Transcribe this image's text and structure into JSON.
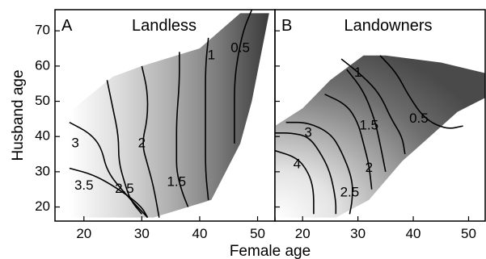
{
  "chart_data": [
    {
      "type": "contour",
      "panel_letter": "A",
      "title": "Landless",
      "xlabel": "Female age",
      "ylabel": "Husband age",
      "xlim": [
        15,
        53
      ],
      "ylim": [
        16,
        76
      ],
      "x_ticks": [
        "20",
        "30",
        "40",
        "50"
      ],
      "y_ticks": [
        "20",
        "30",
        "40",
        "50",
        "60",
        "70"
      ],
      "fill_scale": "grey, light = high, dark = low",
      "domain_corners": [
        [
          17.5,
          17
        ],
        [
          32,
          17
        ],
        [
          42,
          22
        ],
        [
          47,
          38
        ],
        [
          49,
          50
        ],
        [
          52,
          75
        ],
        [
          47,
          75
        ],
        [
          40,
          65
        ],
        [
          30,
          60
        ],
        [
          25,
          57
        ],
        [
          17.5,
          47
        ]
      ],
      "contour_labels": [
        "0.5",
        "1",
        "1.5",
        "2",
        "2.5",
        "3",
        "3.5"
      ],
      "contours": [
        {
          "level": "3.5",
          "label_at": [
            20,
            26
          ],
          "points": [
            [
              17.5,
              31
            ],
            [
              22,
              29
            ],
            [
              27,
              24
            ],
            [
              30,
              20
            ],
            [
              31,
              17
            ]
          ]
        },
        {
          "level": "3",
          "label_at": [
            18.5,
            38
          ],
          "points": [
            [
              17.5,
              44
            ],
            [
              21,
              41
            ],
            [
              23,
              37
            ],
            [
              24,
              30
            ],
            [
              27,
              24
            ],
            [
              31,
              17
            ]
          ]
        },
        {
          "level": "2.5",
          "label_at": [
            27,
            25
          ],
          "points": [
            [
              24,
              56
            ],
            [
              25,
              48
            ],
            [
              26,
              40
            ],
            [
              26,
              33
            ],
            [
              27,
              27
            ],
            [
              28,
              22
            ],
            [
              30,
              18
            ]
          ]
        },
        {
          "level": "2",
          "label_at": [
            30,
            38
          ],
          "points": [
            [
              30,
              60
            ],
            [
              31,
              53
            ],
            [
              31,
              45
            ],
            [
              30,
              38
            ],
            [
              31,
              32
            ],
            [
              32,
              26
            ],
            [
              33,
              17
            ]
          ]
        },
        {
          "level": "1.5",
          "label_at": [
            36,
            27
          ],
          "points": [
            [
              36.5,
              64
            ],
            [
              36.5,
              55
            ],
            [
              36,
              45
            ],
            [
              36,
              36
            ],
            [
              36,
              30
            ],
            [
              37,
              24
            ],
            [
              38,
              20
            ]
          ]
        },
        {
          "level": "1",
          "label_at": [
            42,
            63
          ],
          "points": [
            [
              41.5,
              68
            ],
            [
              41,
              60
            ],
            [
              41,
              50
            ],
            [
              41,
              40
            ],
            [
              41,
              30
            ],
            [
              41.5,
              22
            ]
          ]
        },
        {
          "level": "0.5",
          "label_at": [
            47,
            65
          ],
          "points": [
            [
              49,
              76
            ],
            [
              47.5,
              70
            ],
            [
              46.5,
              62
            ],
            [
              46,
              55
            ],
            [
              46,
              45
            ],
            [
              46,
              38
            ]
          ]
        }
      ]
    },
    {
      "type": "contour",
      "panel_letter": "B",
      "title": "Landowners",
      "xlabel": "Female age",
      "ylabel": "Husband age",
      "xlim": [
        15,
        53
      ],
      "ylim": [
        16,
        76
      ],
      "x_ticks": [
        "20",
        "30",
        "40",
        "50"
      ],
      "y_ticks": [
        "20",
        "30",
        "40",
        "50",
        "60",
        "70"
      ],
      "fill_scale": "grey, light = high, dark = low",
      "domain_corners": [
        [
          15,
          17
        ],
        [
          26,
          17
        ],
        [
          32,
          22
        ],
        [
          38,
          33
        ],
        [
          43,
          40
        ],
        [
          48,
          47
        ],
        [
          53,
          51
        ],
        [
          53,
          58
        ],
        [
          45,
          61
        ],
        [
          35,
          63
        ],
        [
          31,
          63
        ],
        [
          25,
          56
        ],
        [
          20,
          48
        ],
        [
          15,
          43
        ]
      ],
      "contour_labels": [
        "0.5",
        "1",
        "1.5",
        "2",
        "2.5",
        "3",
        "4"
      ],
      "contours": [
        {
          "level": "4",
          "label_at": [
            19,
            32
          ],
          "points": [
            [
              15,
              36
            ],
            [
              19,
              34
            ],
            [
              21,
              30
            ],
            [
              22,
              25
            ],
            [
              22,
              18
            ]
          ]
        },
        {
          "level": "3",
          "label_at": [
            21,
            41
          ],
          "points": [
            [
              15,
              41
            ],
            [
              18,
              41
            ],
            [
              21,
              40
            ],
            [
              23,
              36
            ],
            [
              25,
              30
            ],
            [
              26,
              22
            ],
            [
              26,
              18
            ]
          ]
        },
        {
          "level": "2.5",
          "label_at": [
            28.5,
            24
          ],
          "points": [
            [
              17,
              44
            ],
            [
              21,
              44
            ],
            [
              25,
              41
            ],
            [
              27,
              36
            ],
            [
              29,
              28
            ],
            [
              29,
              22
            ],
            [
              28.5,
              18
            ]
          ]
        },
        {
          "level": "2",
          "label_at": [
            32,
            31
          ],
          "points": [
            [
              24,
              52
            ],
            [
              28,
              49
            ],
            [
              30,
              44
            ],
            [
              31,
              38
            ],
            [
              32,
              32
            ],
            [
              32.5,
              25
            ]
          ]
        },
        {
          "level": "1.5",
          "label_at": [
            32,
            43
          ],
          "points": [
            [
              28,
              59
            ],
            [
              31,
              53
            ],
            [
              33,
              45
            ],
            [
              34,
              38
            ],
            [
              35,
              30
            ]
          ]
        },
        {
          "level": "1",
          "label_at": [
            30,
            58
          ],
          "points": [
            [
              27,
              62
            ],
            [
              31,
              57
            ],
            [
              34,
              52
            ],
            [
              36,
              45
            ],
            [
              38,
              40
            ],
            [
              38.5,
              35
            ]
          ]
        },
        {
          "level": "0.5",
          "label_at": [
            41,
            45
          ],
          "points": [
            [
              34,
              63
            ],
            [
              37,
              58
            ],
            [
              39,
              52
            ],
            [
              42,
              45
            ],
            [
              46,
              42
            ],
            [
              49,
              43
            ]
          ]
        }
      ]
    }
  ]
}
